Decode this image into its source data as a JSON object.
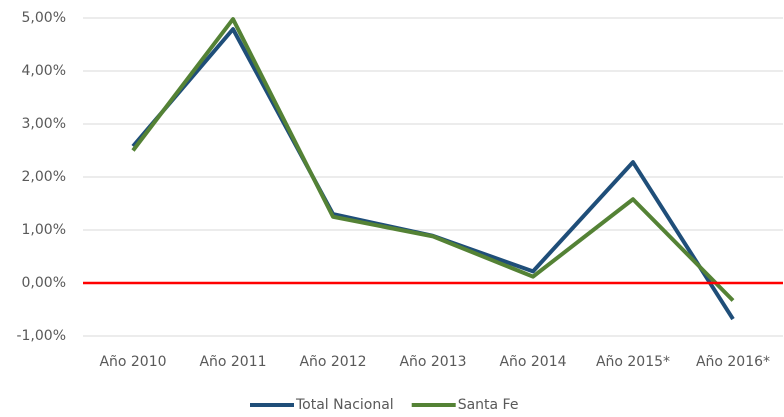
{
  "chart_data": {
    "type": "line",
    "categories": [
      "Año 2010",
      "Año 2011",
      "Año 2012",
      "Año 2013",
      "Año 2014",
      "Año 2015*",
      "Año 2016*"
    ],
    "series": [
      {
        "name": "Total Nacional",
        "color": "#1f4e79",
        "values": [
          2.58,
          4.79,
          1.3,
          0.89,
          0.22,
          2.28,
          -0.68
        ]
      },
      {
        "name": "Santa Fe",
        "color": "#548235",
        "values": [
          2.5,
          4.98,
          1.25,
          0.88,
          0.12,
          1.58,
          -0.33
        ]
      }
    ],
    "ylim": [
      -1,
      5
    ],
    "yticks": [
      {
        "value": -1,
        "label": "-1,00%"
      },
      {
        "value": 0,
        "label": "0,00%"
      },
      {
        "value": 1,
        "label": "1,00%"
      },
      {
        "value": 2,
        "label": "2,00%"
      },
      {
        "value": 3,
        "label": "3,00%"
      },
      {
        "value": 4,
        "label": "4,00%"
      },
      {
        "value": 5,
        "label": "5,00%"
      }
    ],
    "grid": true,
    "zero_line": {
      "value": 0,
      "color": "#ff0000"
    },
    "legend": "bottom"
  }
}
